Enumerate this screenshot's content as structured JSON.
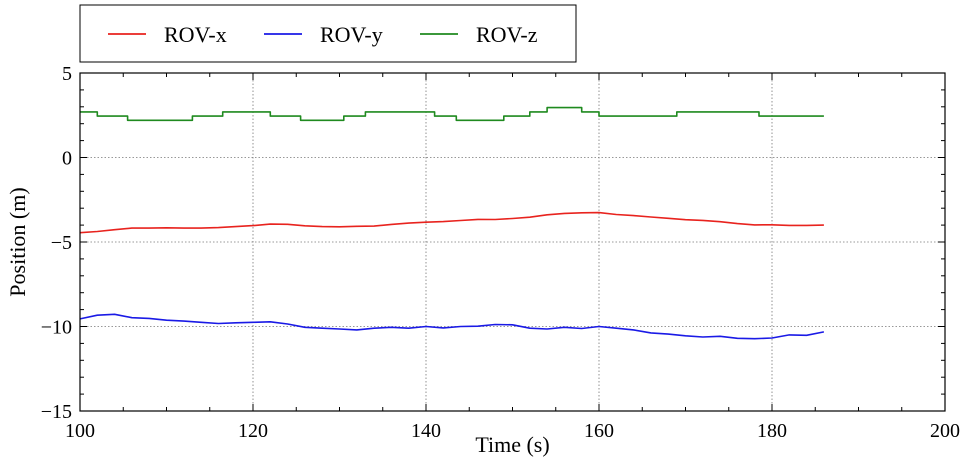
{
  "chart_data": {
    "type": "line",
    "title": "",
    "xlabel": "Time (s)",
    "ylabel": "Position (m)",
    "xlim": [
      100,
      200
    ],
    "ylim": [
      -15,
      5
    ],
    "xticks": [
      100,
      120,
      140,
      160,
      180,
      200
    ],
    "yticks": [
      -15,
      -10,
      -5,
      0,
      5
    ],
    "grid": true,
    "legend_position": "top-left, above plot",
    "series": [
      {
        "name": "ROV-x",
        "color": "#e8231e",
        "x": [
          100,
          102,
          104,
          106,
          108,
          110,
          112,
          114,
          116,
          118,
          120,
          122,
          124,
          126,
          128,
          130,
          132,
          134,
          136,
          138,
          140,
          142,
          144,
          146,
          148,
          150,
          152,
          154,
          156,
          158,
          160,
          162,
          164,
          166,
          168,
          170,
          172,
          174,
          176,
          178,
          180,
          182,
          184,
          186
        ],
        "y": [
          -4.45,
          -4.38,
          -4.27,
          -4.18,
          -4.18,
          -4.16,
          -4.18,
          -4.18,
          -4.15,
          -4.09,
          -4.03,
          -3.94,
          -3.95,
          -4.04,
          -4.09,
          -4.1,
          -4.07,
          -4.06,
          -3.96,
          -3.88,
          -3.83,
          -3.79,
          -3.73,
          -3.66,
          -3.67,
          -3.61,
          -3.53,
          -3.39,
          -3.31,
          -3.27,
          -3.26,
          -3.37,
          -3.44,
          -3.52,
          -3.6,
          -3.68,
          -3.72,
          -3.8,
          -3.91,
          -3.99,
          -3.98,
          -4.02,
          -4.02,
          -4.0
        ]
      },
      {
        "name": "ROV-y",
        "color": "#1a1ae6",
        "x": [
          100,
          102,
          104,
          106,
          108,
          110,
          112,
          114,
          116,
          118,
          120,
          122,
          124,
          126,
          128,
          130,
          132,
          134,
          136,
          138,
          140,
          142,
          144,
          146,
          148,
          150,
          152,
          154,
          156,
          158,
          160,
          162,
          164,
          166,
          168,
          170,
          172,
          174,
          176,
          178,
          180,
          182,
          184,
          186
        ],
        "y": [
          -9.55,
          -9.33,
          -9.28,
          -9.48,
          -9.52,
          -9.63,
          -9.68,
          -9.75,
          -9.82,
          -9.78,
          -9.75,
          -9.72,
          -9.85,
          -10.05,
          -10.1,
          -10.15,
          -10.2,
          -10.1,
          -10.05,
          -10.1,
          -10.0,
          -10.08,
          -10.0,
          -9.98,
          -9.88,
          -9.9,
          -10.1,
          -10.15,
          -10.05,
          -10.12,
          -10.0,
          -10.1,
          -10.2,
          -10.38,
          -10.45,
          -10.55,
          -10.62,
          -10.58,
          -10.7,
          -10.72,
          -10.68,
          -10.5,
          -10.52,
          -10.32
        ]
      },
      {
        "name": "ROV-z",
        "color": "#1f8a1f",
        "step": true,
        "x": [
          100,
          102,
          105.5,
          110,
          113,
          116.5,
          119,
          122,
          125.5,
          129,
          130.5,
          133,
          136,
          139,
          141,
          143.5,
          147,
          149,
          152,
          154,
          158,
          160,
          163,
          165,
          169,
          172,
          175,
          178.5,
          186
        ],
        "y": [
          2.7,
          2.45,
          2.2,
          2.2,
          2.45,
          2.7,
          2.7,
          2.45,
          2.2,
          2.2,
          2.45,
          2.7,
          2.7,
          2.7,
          2.45,
          2.2,
          2.2,
          2.45,
          2.7,
          2.95,
          2.7,
          2.45,
          2.45,
          2.45,
          2.7,
          2.7,
          2.7,
          2.45,
          2.45
        ]
      }
    ]
  }
}
